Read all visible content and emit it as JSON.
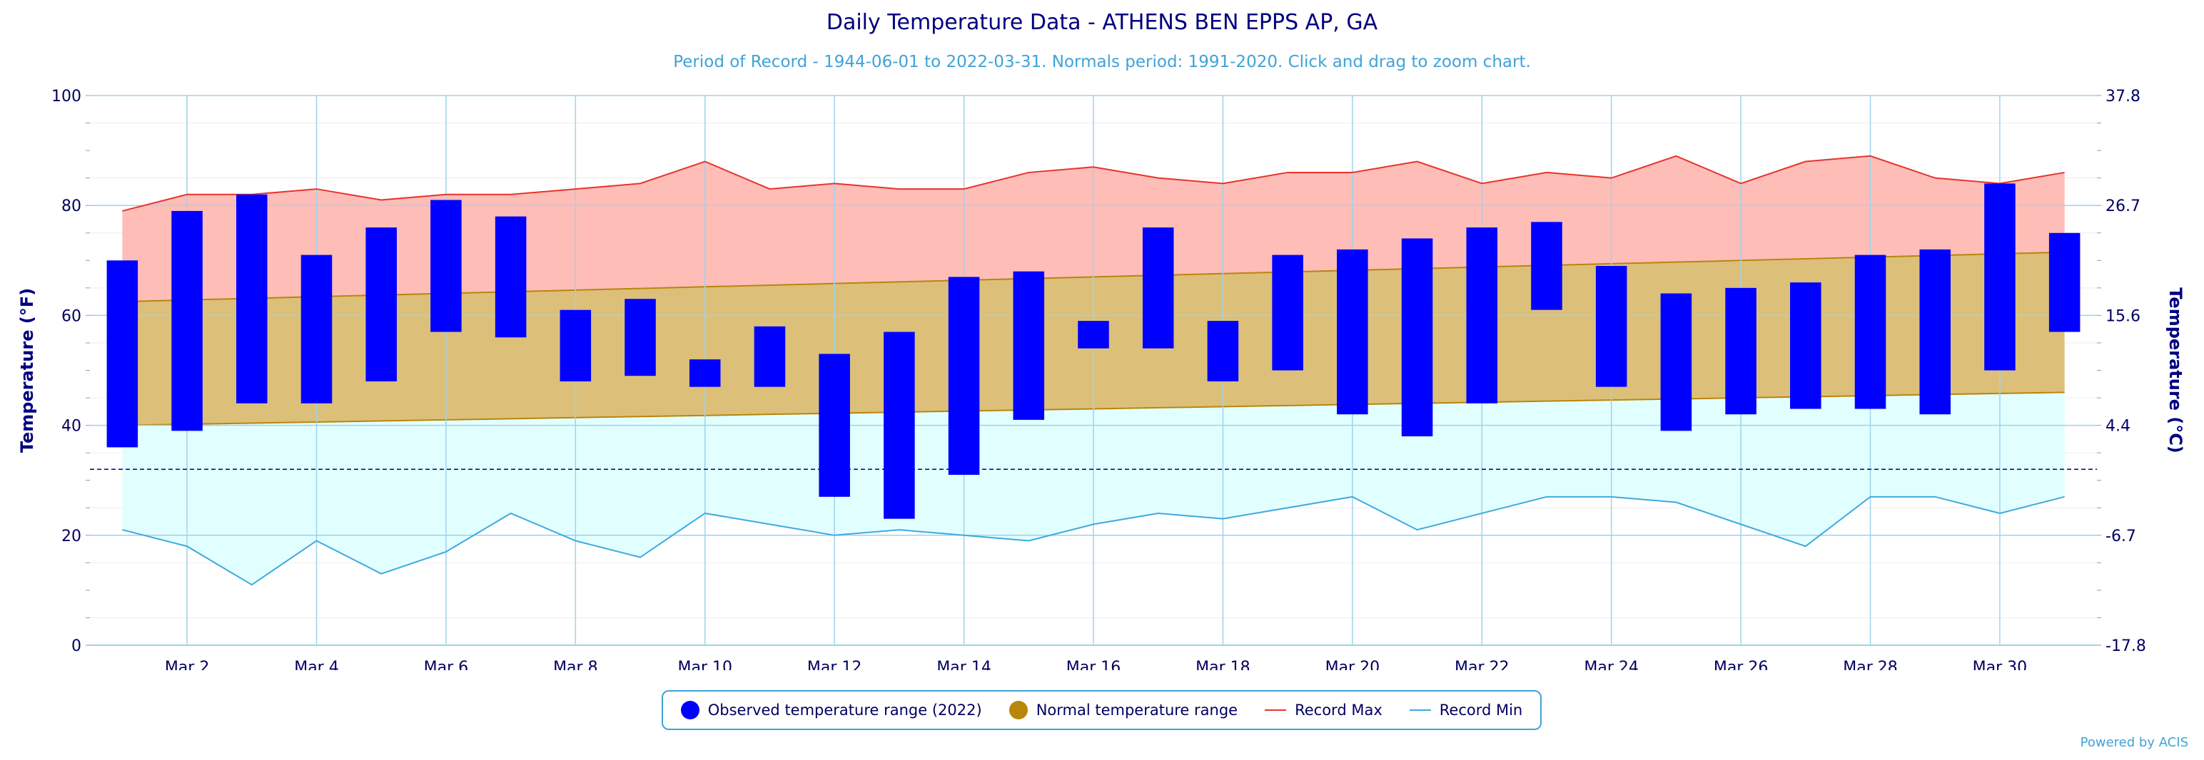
{
  "chart_data": {
    "type": "bar",
    "title": "Daily Temperature Data - ATHENS BEN EPPS AP, GA",
    "subtitle": "Period of Record - 1944-06-01 to 2022-03-31. Normals period: 1991-2020. Click and drag to zoom chart.",
    "ylabel": "Temperature (°F)",
    "ylabel_right": "Temperature (°C)",
    "ylim": [
      0,
      100
    ],
    "y_ticks": [
      0,
      20,
      40,
      60,
      80,
      100
    ],
    "y_ticks_right": [
      "-17.8",
      "-6.7",
      "4.4",
      "15.6",
      "26.7",
      "37.8"
    ],
    "x_tick_labels": [
      "Mar 2",
      "Mar 4",
      "Mar 6",
      "Mar 8",
      "Mar 10",
      "Mar 12",
      "Mar 14",
      "Mar 16",
      "Mar 18",
      "Mar 20",
      "Mar 22",
      "Mar 24",
      "Mar 26",
      "Mar 28",
      "Mar 30"
    ],
    "x_tick_days": [
      2,
      4,
      6,
      8,
      10,
      12,
      14,
      16,
      18,
      20,
      22,
      24,
      26,
      28,
      30
    ],
    "days": [
      1,
      2,
      3,
      4,
      5,
      6,
      7,
      8,
      9,
      10,
      11,
      12,
      13,
      14,
      15,
      16,
      17,
      18,
      19,
      20,
      21,
      22,
      23,
      24,
      25,
      26,
      27,
      28,
      29,
      30,
      31
    ],
    "freezing_line": 32,
    "grid": true,
    "legend_position": "bottom",
    "series": [
      {
        "name": "Observed temperature range (2022)",
        "color": "#0000ff",
        "low": [
          36,
          39,
          44,
          44,
          48,
          57,
          56,
          48,
          49,
          47,
          47,
          27,
          23,
          31,
          41,
          54,
          54,
          48,
          50,
          42,
          38,
          44,
          61,
          47,
          39,
          42,
          43,
          43,
          42,
          50,
          57
        ],
        "high": [
          70,
          79,
          82,
          71,
          76,
          81,
          78,
          61,
          63,
          52,
          58,
          53,
          57,
          67,
          68,
          59,
          76,
          59,
          71,
          72,
          74,
          76,
          77,
          69,
          64,
          65,
          66,
          71,
          72,
          84,
          75
        ]
      },
      {
        "name": "Normal temperature range",
        "color": "#b8860b",
        "low": [
          40,
          40.2,
          40.4,
          40.6,
          40.8,
          41,
          41.2,
          41.4,
          41.6,
          41.8,
          42,
          42.2,
          42.4,
          42.6,
          42.8,
          43,
          43.2,
          43.4,
          43.6,
          43.8,
          44,
          44.2,
          44.4,
          44.6,
          44.8,
          45,
          45.2,
          45.4,
          45.6,
          45.8,
          46
        ],
        "high": [
          62.5,
          62.8,
          63.1,
          63.4,
          63.7,
          64,
          64.3,
          64.6,
          64.9,
          65.2,
          65.5,
          65.8,
          66.1,
          66.4,
          66.7,
          67,
          67.3,
          67.6,
          67.9,
          68.2,
          68.5,
          68.8,
          69.1,
          69.4,
          69.7,
          70,
          70.3,
          70.6,
          70.9,
          71.2,
          71.5
        ]
      },
      {
        "name": "Record Max",
        "color": "#e8332b",
        "values": [
          79,
          82,
          82,
          83,
          81,
          82,
          82,
          83,
          84,
          88,
          83,
          84,
          83,
          83,
          86,
          87,
          85,
          84,
          86,
          86,
          88,
          84,
          86,
          85,
          89,
          84,
          88,
          89,
          85,
          84,
          86
        ]
      },
      {
        "name": "Record Min",
        "color": "#3fa9e0",
        "values": [
          21,
          18,
          11,
          19,
          13,
          17,
          24,
          19,
          16,
          24,
          22,
          20,
          21,
          20,
          19,
          22,
          24,
          23,
          25,
          27,
          21,
          24,
          27,
          27,
          26,
          22,
          18,
          27,
          27,
          24,
          27
        ]
      }
    ]
  },
  "footer": {
    "credit": "Powered by ACIS"
  }
}
